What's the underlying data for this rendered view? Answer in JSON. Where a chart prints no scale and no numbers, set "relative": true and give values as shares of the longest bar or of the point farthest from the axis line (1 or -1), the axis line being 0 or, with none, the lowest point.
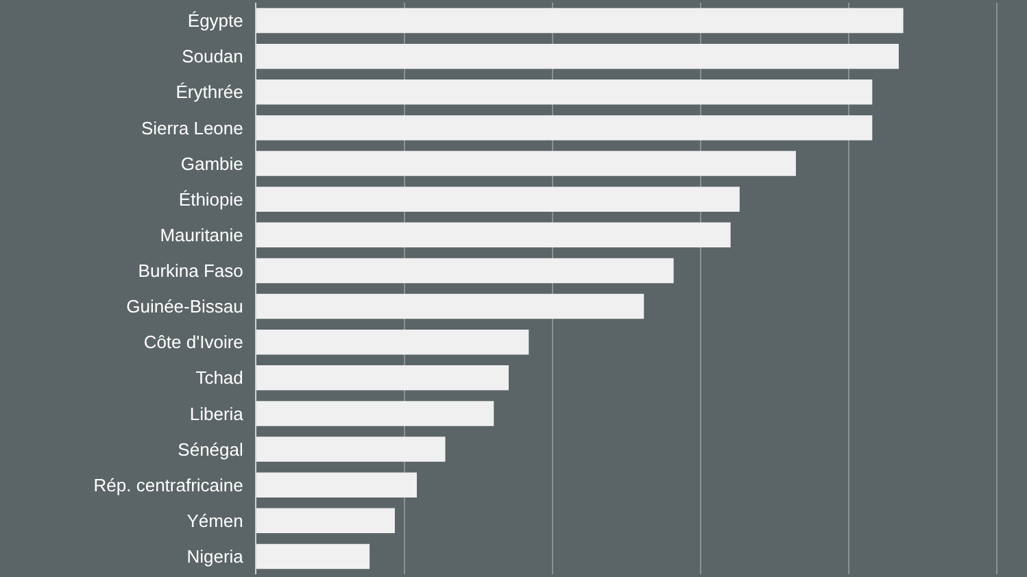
{
  "chart_data": {
    "type": "bar",
    "orientation": "horizontal",
    "relative": true,
    "grid": "x",
    "categories": [
      "Égypte",
      "Soudan",
      "Érythrée",
      "Sierra Leone",
      "Gambie",
      "Éthiopie",
      "Mauritanie",
      "Burkina Faso",
      "Guinée-Bissau",
      "Côte d'Ivoire",
      "Tchad",
      "Liberia",
      "Sénégal",
      "Rép. centrafricaine",
      "Yémen",
      "Nigeria"
    ],
    "values": [
      1,
      0.993,
      0.952,
      0.952,
      0.834,
      0.747,
      0.733,
      0.645,
      0.599,
      0.421,
      0.39,
      0.367,
      0.292,
      0.248,
      0.214,
      0.175
    ],
    "color": "#f0f0f0"
  }
}
